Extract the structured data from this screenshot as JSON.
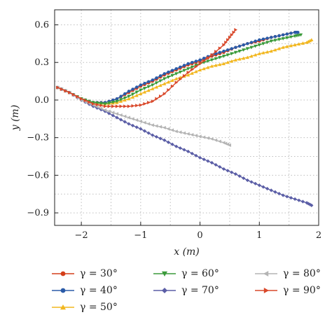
{
  "chart_data": {
    "type": "line",
    "xlabel": "x (m)",
    "ylabel": "y (m)",
    "xlim": [
      -2.45,
      2.0
    ],
    "ylim": [
      -1.0,
      0.72
    ],
    "xticks": [
      -2,
      -1,
      0,
      1,
      2
    ],
    "yticks": [
      -0.9,
      -0.6,
      -0.3,
      0.0,
      0.3,
      0.6
    ],
    "xtick_labels": [
      "−2",
      "−1",
      "0",
      "1",
      "2"
    ],
    "ytick_labels": [
      "−0.9",
      "−0.6",
      "−0.3",
      "0.0",
      "0.3",
      "0.6"
    ],
    "grid": "dotted",
    "legend_position": "bottom",
    "series": [
      {
        "name": "γ = 30°",
        "color": "#d43f1a",
        "marker": "circle",
        "x": [
          -2.4,
          -2.2,
          -2.0,
          -1.8,
          -1.6,
          -1.4,
          -1.2,
          -1.0,
          -0.8,
          -0.6,
          -0.4,
          -0.2,
          0.0,
          0.2,
          0.4,
          0.6,
          0.8,
          1.0,
          1.2,
          1.4,
          1.6
        ],
        "y": [
          0.1,
          0.06,
          0.01,
          -0.02,
          -0.02,
          0.01,
          0.06,
          0.11,
          0.15,
          0.2,
          0.24,
          0.28,
          0.31,
          0.35,
          0.38,
          0.42,
          0.45,
          0.47,
          0.5,
          0.52,
          0.54
        ]
      },
      {
        "name": "γ = 40°",
        "color": "#2b5ba8",
        "marker": "circle",
        "x": [
          -2.4,
          -2.2,
          -2.0,
          -1.8,
          -1.6,
          -1.4,
          -1.2,
          -1.0,
          -0.8,
          -0.6,
          -0.4,
          -0.2,
          0.0,
          0.2,
          0.4,
          0.6,
          0.8,
          1.0,
          1.2,
          1.4,
          1.6,
          1.65
        ],
        "y": [
          0.1,
          0.06,
          0.01,
          -0.02,
          -0.02,
          0.01,
          0.07,
          0.12,
          0.16,
          0.21,
          0.25,
          0.29,
          0.32,
          0.36,
          0.39,
          0.42,
          0.45,
          0.48,
          0.5,
          0.52,
          0.54,
          0.54
        ]
      },
      {
        "name": "γ = 50°",
        "color": "#f2b71f",
        "marker": "triangle-up",
        "x": [
          -2.4,
          -2.2,
          -2.0,
          -1.8,
          -1.6,
          -1.4,
          -1.2,
          -1.0,
          -0.8,
          -0.6,
          -0.4,
          -0.2,
          0.0,
          0.2,
          0.4,
          0.6,
          0.8,
          1.0,
          1.2,
          1.4,
          1.6,
          1.8,
          1.88
        ],
        "y": [
          0.1,
          0.06,
          0.01,
          -0.02,
          -0.03,
          -0.02,
          0.01,
          0.05,
          0.09,
          0.13,
          0.17,
          0.2,
          0.24,
          0.27,
          0.29,
          0.32,
          0.34,
          0.37,
          0.39,
          0.42,
          0.44,
          0.46,
          0.48
        ]
      },
      {
        "name": "γ = 60°",
        "color": "#3a9a3a",
        "marker": "triangle-down",
        "x": [
          -2.4,
          -2.2,
          -2.0,
          -1.8,
          -1.6,
          -1.4,
          -1.2,
          -1.0,
          -0.8,
          -0.6,
          -0.4,
          -0.2,
          0.0,
          0.2,
          0.4,
          0.6,
          0.8,
          1.0,
          1.2,
          1.4,
          1.6,
          1.7
        ],
        "y": [
          0.1,
          0.06,
          0.01,
          -0.02,
          -0.03,
          -0.01,
          0.03,
          0.08,
          0.12,
          0.17,
          0.21,
          0.25,
          0.29,
          0.32,
          0.35,
          0.38,
          0.41,
          0.44,
          0.47,
          0.49,
          0.51,
          0.52
        ]
      },
      {
        "name": "γ = 70°",
        "color": "#5b5ea6",
        "marker": "diamond",
        "x": [
          -2.4,
          -2.2,
          -2.0,
          -1.8,
          -1.6,
          -1.4,
          -1.2,
          -1.0,
          -0.8,
          -0.6,
          -0.4,
          -0.2,
          0.0,
          0.2,
          0.4,
          0.6,
          0.8,
          1.0,
          1.2,
          1.4,
          1.6,
          1.8,
          1.88
        ],
        "y": [
          0.1,
          0.06,
          0.0,
          -0.05,
          -0.09,
          -0.14,
          -0.19,
          -0.23,
          -0.28,
          -0.32,
          -0.37,
          -0.41,
          -0.46,
          -0.5,
          -0.55,
          -0.59,
          -0.64,
          -0.68,
          -0.72,
          -0.76,
          -0.79,
          -0.82,
          -0.84
        ]
      },
      {
        "name": "γ = 80°",
        "color": "#b4b4b4",
        "marker": "triangle-left",
        "x": [
          -2.4,
          -2.2,
          -2.0,
          -1.8,
          -1.6,
          -1.4,
          -1.2,
          -1.0,
          -0.8,
          -0.6,
          -0.4,
          -0.2,
          0.0,
          0.2,
          0.4,
          0.5
        ],
        "y": [
          0.1,
          0.06,
          0.0,
          -0.04,
          -0.08,
          -0.11,
          -0.14,
          -0.17,
          -0.2,
          -0.22,
          -0.25,
          -0.27,
          -0.29,
          -0.31,
          -0.34,
          -0.36
        ]
      },
      {
        "name": "γ = 90°",
        "color": "#d9482a",
        "marker": "triangle-right",
        "x": [
          -2.4,
          -2.2,
          -2.0,
          -1.8,
          -1.6,
          -1.4,
          -1.2,
          -1.0,
          -0.8,
          -0.6,
          -0.4,
          -0.2,
          0.0,
          0.2,
          0.4,
          0.5,
          0.6
        ],
        "y": [
          0.1,
          0.06,
          0.01,
          -0.03,
          -0.05,
          -0.05,
          -0.05,
          -0.04,
          -0.01,
          0.05,
          0.14,
          0.22,
          0.29,
          0.36,
          0.44,
          0.5,
          0.56
        ]
      }
    ]
  }
}
